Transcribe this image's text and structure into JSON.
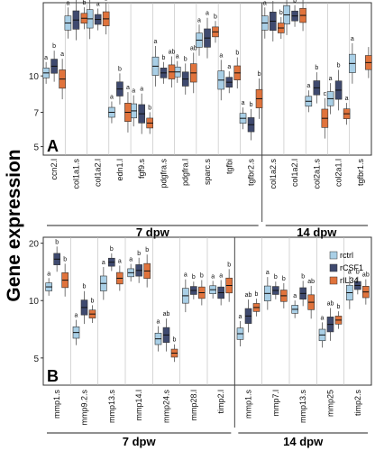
{
  "ylabel": "Gene expression",
  "legend": [
    {
      "label": "rctrl",
      "color": "#a9cfe6"
    },
    {
      "label": "rCSF1",
      "color": "#3f4a6f"
    },
    {
      "label": "rIL34",
      "color": "#e0733c"
    }
  ],
  "chart_data": [
    {
      "type": "box",
      "panel": "A",
      "ylabel": "Gene expression",
      "yticks": [
        5,
        7,
        10
      ],
      "ylim": [
        4.6,
        20.5
      ],
      "scale": "log2",
      "categories": [
        "ccn2.l",
        "col1a1.s",
        "col1a2.l",
        "edn1.l",
        "fgf9.s",
        "pdgfra.s",
        "pdgfra.l",
        "sparc.s",
        "tgfbi",
        "tgfbr2.s",
        "col1a2.s",
        "col1a2.l",
        "col2a1.s",
        "col2a1.l",
        "tgfbr1.s"
      ],
      "groups": [
        {
          "label": "7 dpw",
          "from": 0,
          "to": 9
        },
        {
          "label": "14 dpw",
          "from": 10,
          "to": 14
        }
      ],
      "series": [
        {
          "name": "rctrl",
          "values": [
            10.3,
            16.8,
            17.5,
            7.0,
            7.1,
            11.0,
            10.4,
            14.2,
            9.6,
            6.6,
            16.8,
            18.2,
            7.8,
            8.0,
            11.3
          ]
        },
        {
          "name": "rCSF1",
          "values": [
            11.0,
            17.3,
            17.4,
            8.8,
            6.9,
            10.3,
            9.7,
            14.5,
            9.4,
            6.2,
            17.1,
            18.0,
            8.9,
            8.7,
            null
          ]
        },
        {
          "name": "rIL34",
          "values": [
            9.7,
            17.6,
            17.5,
            7.0,
            6.3,
            10.4,
            10.3,
            15.4,
            10.3,
            8.0,
            16.0,
            18.1,
            6.6,
            6.9,
            11.4
          ]
        }
      ],
      "significance": [
        [
          "a",
          "b",
          "a"
        ],
        [
          "a",
          "ab",
          "b"
        ],
        [
          "a",
          "a",
          "b"
        ],
        [
          "a",
          "b",
          "a"
        ],
        [
          "a",
          "a",
          "b"
        ],
        [
          "a",
          "b",
          "ab"
        ],
        [
          "a",
          "b",
          "ab"
        ],
        [
          "a",
          "a",
          "b"
        ],
        [
          "a",
          "a",
          "b"
        ],
        [
          "a",
          "b",
          "b"
        ],
        [
          "a",
          "ab",
          "b"
        ],
        [
          "a",
          "b",
          "ab"
        ],
        [
          "a",
          "b",
          "c"
        ],
        [
          "a",
          "b",
          "a"
        ],
        [
          "a",
          "b",
          ""
        ]
      ]
    },
    {
      "type": "box",
      "panel": "B",
      "ylabel": "Gene expression",
      "yticks": [
        5,
        10,
        20
      ],
      "ylim": [
        3.6,
        21.5
      ],
      "scale": "log2",
      "categories": [
        "mmp1.s",
        "mmp9.2.s",
        "mmp13.s",
        "mmp14.l",
        "mmp24.s",
        "mmp28.l",
        "timp2.l",
        "mmp1.s",
        "mmp7.l",
        "mmp13.s",
        "mmp25",
        "timp2.s"
      ],
      "groups": [
        {
          "label": "7 dpw",
          "from": 0,
          "to": 6
        },
        {
          "label": "14 dpw",
          "from": 7,
          "to": 11
        }
      ],
      "series": [
        {
          "name": "rctrl",
          "values": [
            11.8,
            6.8,
            12.3,
            14.0,
            6.3,
            10.6,
            11.4,
            6.7,
            10.9,
            9.0,
            6.6,
            11.0
          ]
        },
        {
          "name": "rCSF1",
          "values": [
            16.5,
            9.2,
            15.9,
            14.4,
            6.6,
            11.3,
            11.0,
            8.3,
            11.3,
            10.9,
            7.5,
            12.0
          ]
        },
        {
          "name": "rIL34",
          "values": [
            12.8,
            8.5,
            13.1,
            14.3,
            5.3,
            11.0,
            12.0,
            9.2,
            10.6,
            9.8,
            7.9,
            11.1
          ]
        }
      ],
      "significance": [
        [
          "a",
          "b",
          "b"
        ],
        [
          "a",
          "b",
          "b"
        ],
        [
          "a",
          "b",
          "a"
        ],
        [
          "a",
          "b",
          "b"
        ],
        [
          "a",
          "ab",
          "b"
        ],
        [
          "a",
          "b",
          "b"
        ],
        [
          "a",
          "a",
          "b"
        ],
        [
          "a",
          "ab",
          "b"
        ],
        [
          "a",
          "b",
          "b"
        ],
        [
          "a",
          "b",
          "ab"
        ],
        [
          "a",
          "ab",
          "b"
        ],
        [
          "a",
          "b",
          "ab"
        ]
      ]
    }
  ]
}
